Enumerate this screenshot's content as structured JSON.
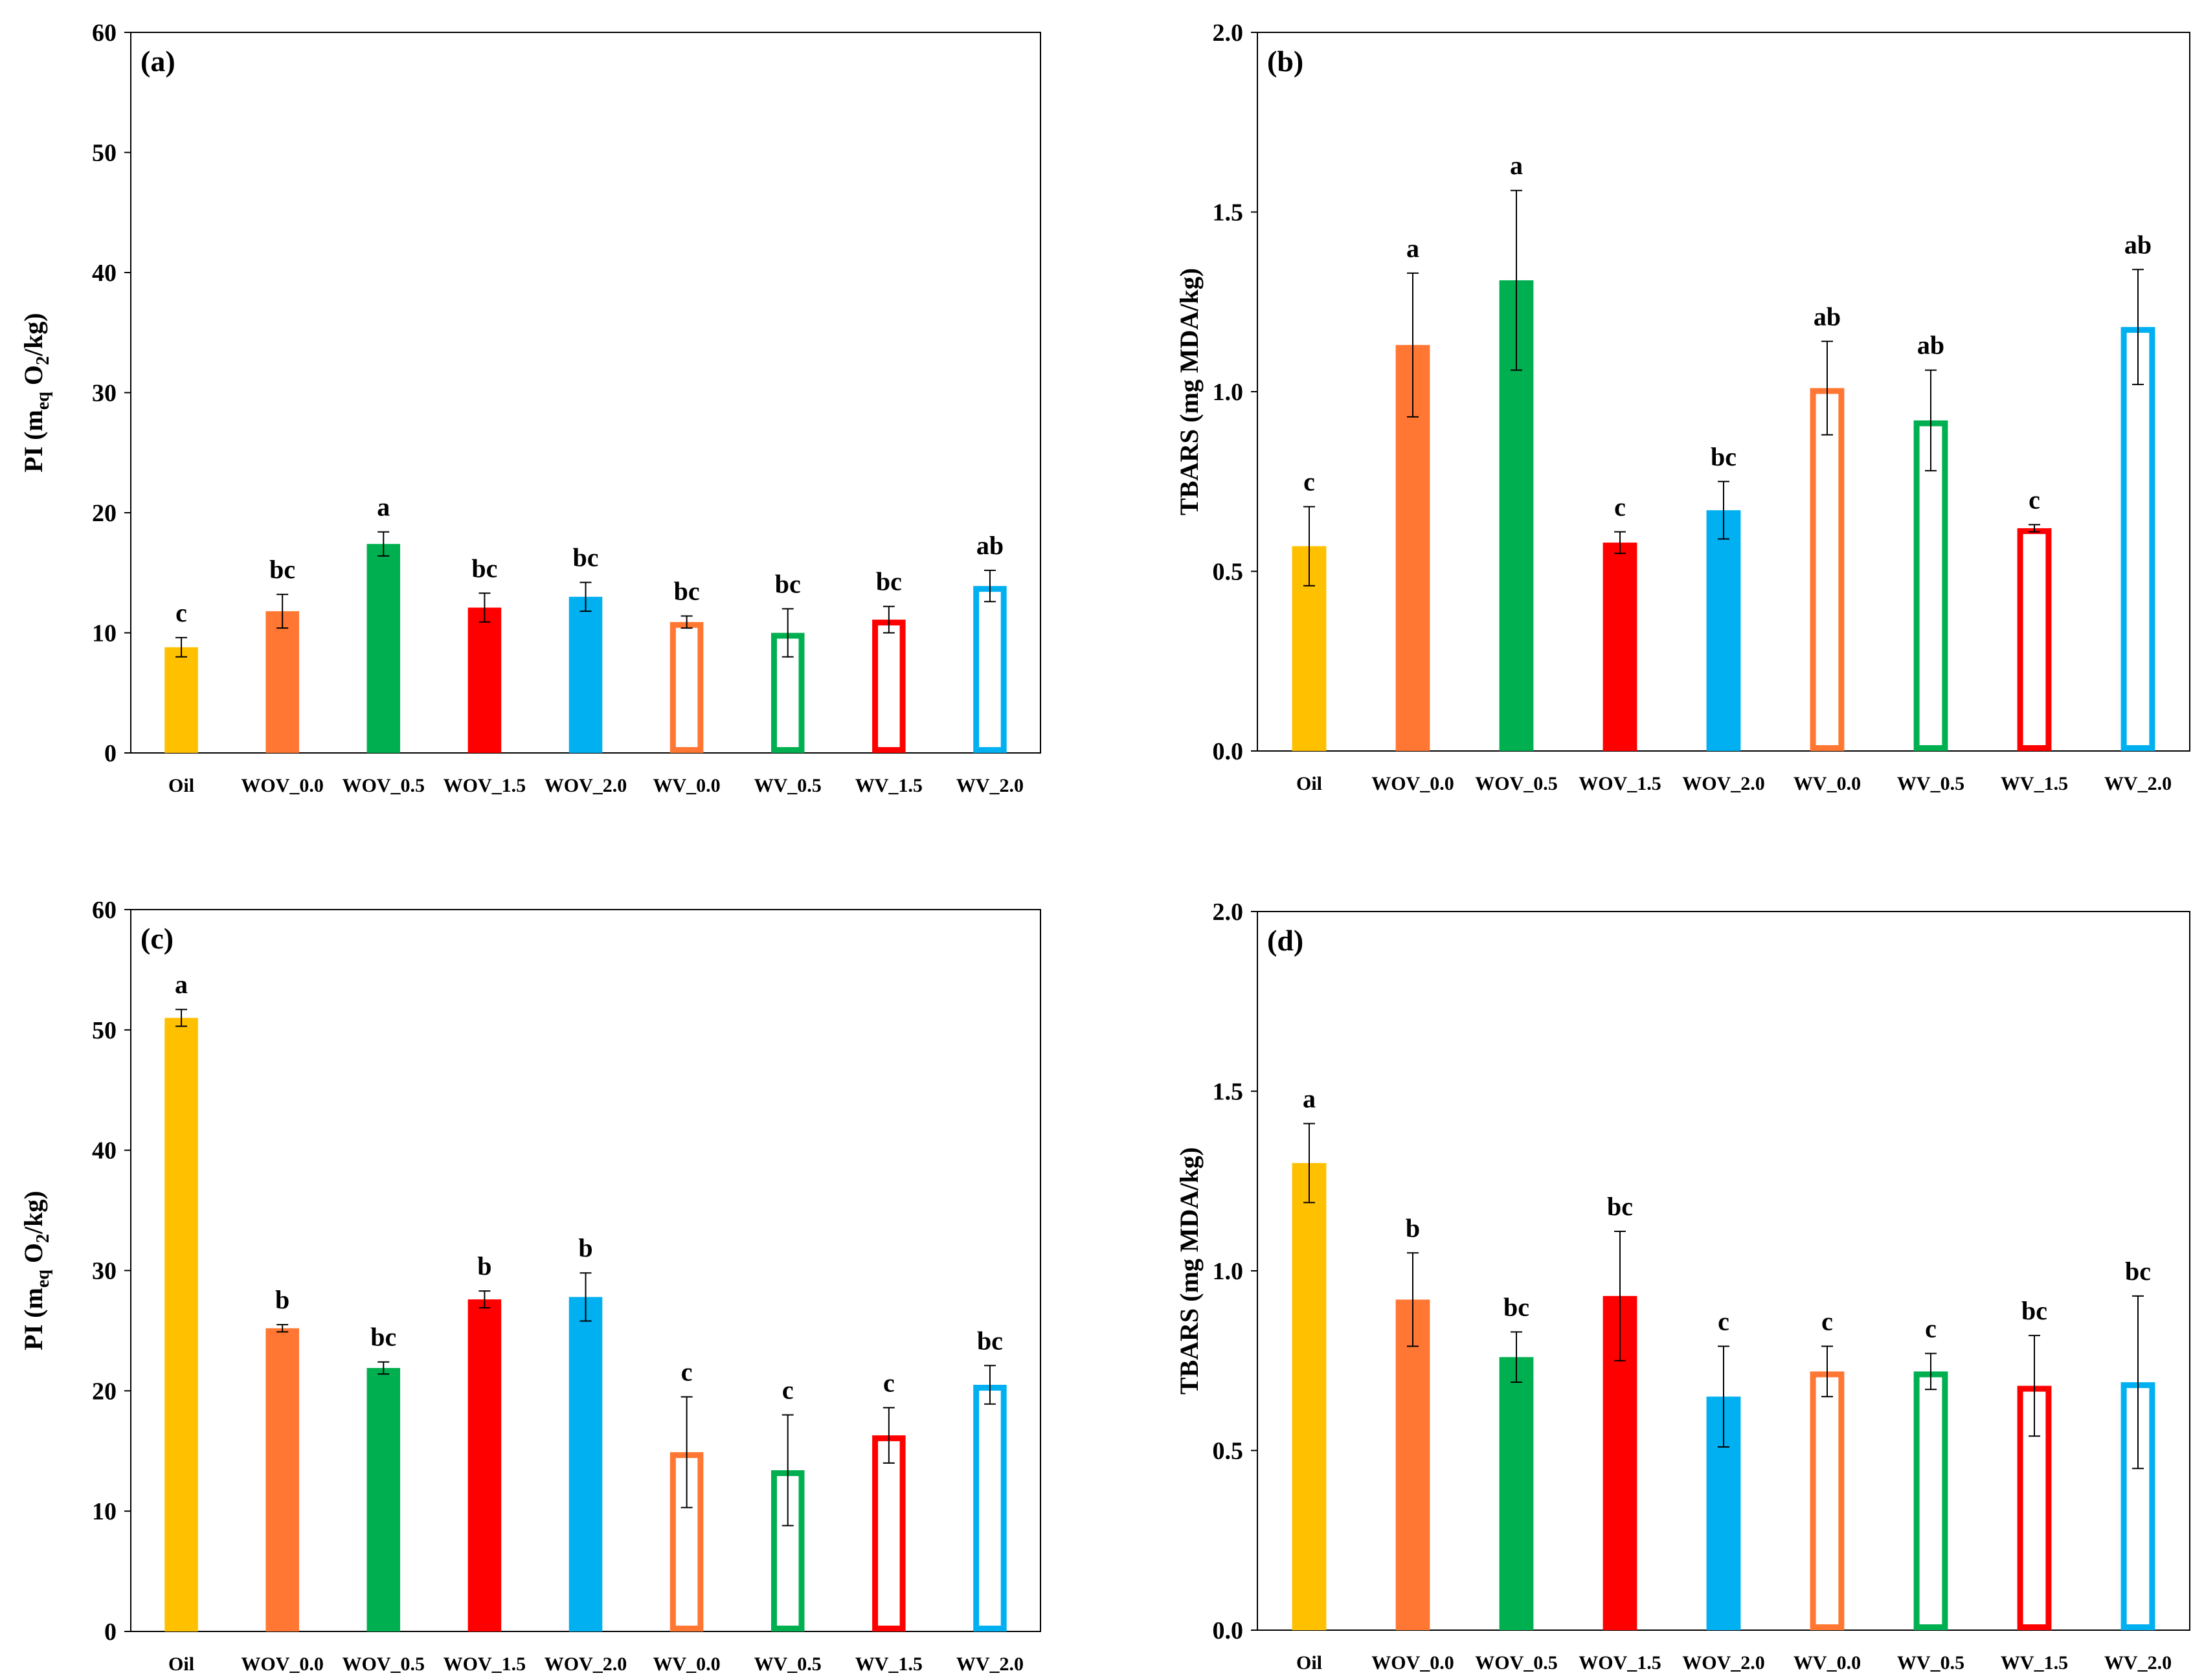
{
  "chart_data": [
    {
      "id": "a",
      "type": "bar",
      "panel_label": "(a)",
      "ylabel_main": "PI (m",
      "ylabel_sub": "eq",
      "ylabel_mid": " O",
      "ylabel_sub2": "2",
      "ylabel_end": "/kg)",
      "ylim": [
        0,
        60
      ],
      "yticks": [
        "0",
        "10",
        "20",
        "30",
        "40",
        "50",
        "60"
      ],
      "ytick_values": [
        0,
        10,
        20,
        30,
        40,
        50,
        60
      ],
      "categories": [
        "Oil",
        "WOV_0.0",
        "WOV_0.5",
        "WOV_1.5",
        "WOV_2.0",
        "WV_0.0",
        "WV_0.5",
        "WV_1.5",
        "WV_2.0"
      ],
      "values": [
        8.8,
        11.8,
        17.4,
        12.1,
        13.0,
        10.9,
        10.0,
        11.1,
        13.9
      ],
      "errors": [
        0.8,
        1.4,
        1.0,
        1.2,
        1.2,
        0.5,
        2.0,
        1.1,
        1.3
      ],
      "significance": [
        "c",
        "bc",
        "a",
        "bc",
        "bc",
        "bc",
        "bc",
        "bc",
        "ab"
      ]
    },
    {
      "id": "b",
      "type": "bar",
      "panel_label": "(b)",
      "ylabel_main": "TBARS (mg MDA/kg)",
      "ylim": [
        0,
        2.0
      ],
      "yticks": [
        "0.0",
        "0.5",
        "1.0",
        "1.5",
        "2.0"
      ],
      "ytick_values": [
        0,
        0.5,
        1.0,
        1.5,
        2.0
      ],
      "categories": [
        "Oil",
        "WOV_0.0",
        "WOV_0.5",
        "WOV_1.5",
        "WOV_2.0",
        "WV_0.0",
        "WV_0.5",
        "WV_1.5",
        "WV_2.0"
      ],
      "values": [
        0.57,
        1.13,
        1.31,
        0.58,
        0.67,
        1.01,
        0.92,
        0.62,
        1.18
      ],
      "errors": [
        0.11,
        0.2,
        0.25,
        0.03,
        0.08,
        0.13,
        0.14,
        0.01,
        0.16
      ],
      "significance": [
        "c",
        "a",
        "a",
        "c",
        "bc",
        "ab",
        "ab",
        "c",
        "ab"
      ]
    },
    {
      "id": "c",
      "type": "bar",
      "panel_label": "(c)",
      "ylabel_main": "PI (m",
      "ylabel_sub": "eq",
      "ylabel_mid": " O",
      "ylabel_sub2": "2",
      "ylabel_end": "/kg)",
      "ylim": [
        0,
        60
      ],
      "yticks": [
        "0",
        "10",
        "20",
        "30",
        "40",
        "50",
        "60"
      ],
      "ytick_values": [
        0,
        10,
        20,
        30,
        40,
        50,
        60
      ],
      "categories": [
        "Oil",
        "WOV_0.0",
        "WOV_0.5",
        "WOV_1.5",
        "WOV_2.0",
        "WV_0.0",
        "WV_0.5",
        "WV_1.5",
        "WV_2.0"
      ],
      "values": [
        51.0,
        25.2,
        21.9,
        27.6,
        27.8,
        14.9,
        13.4,
        16.3,
        20.5
      ],
      "errors": [
        0.7,
        0.3,
        0.5,
        0.7,
        2.0,
        4.6,
        4.6,
        2.3,
        1.6
      ],
      "significance": [
        "a",
        "b",
        "bc",
        "b",
        "b",
        "c",
        "c",
        "c",
        "bc"
      ]
    },
    {
      "id": "d",
      "type": "bar",
      "panel_label": "(d)",
      "ylabel_main": "TBARS (mg MDA/kg)",
      "ylim": [
        0,
        2.0
      ],
      "yticks": [
        "0.0",
        "0.5",
        "1.0",
        "1.5",
        "2.0"
      ],
      "ytick_values": [
        0,
        0.5,
        1.0,
        1.5,
        2.0
      ],
      "categories": [
        "Oil",
        "WOV_0.0",
        "WOV_0.5",
        "WOV_1.5",
        "WOV_2.0",
        "WV_0.0",
        "WV_0.5",
        "WV_1.5",
        "WV_2.0"
      ],
      "values": [
        1.3,
        0.92,
        0.76,
        0.93,
        0.65,
        0.72,
        0.72,
        0.68,
        0.69
      ],
      "errors": [
        0.11,
        0.13,
        0.07,
        0.18,
        0.14,
        0.07,
        0.05,
        0.14,
        0.24
      ],
      "significance": [
        "a",
        "b",
        "bc",
        "bc",
        "c",
        "c",
        "c",
        "bc",
        "bc"
      ]
    }
  ],
  "series_style": {
    "colors": [
      "#FFC000",
      "#FF7733",
      "#00B050",
      "#FF0000",
      "#00B0F0",
      "#FF7733",
      "#00B050",
      "#FF0000",
      "#00B0F0"
    ],
    "filled": [
      true,
      true,
      true,
      true,
      true,
      false,
      false,
      false,
      false
    ]
  }
}
